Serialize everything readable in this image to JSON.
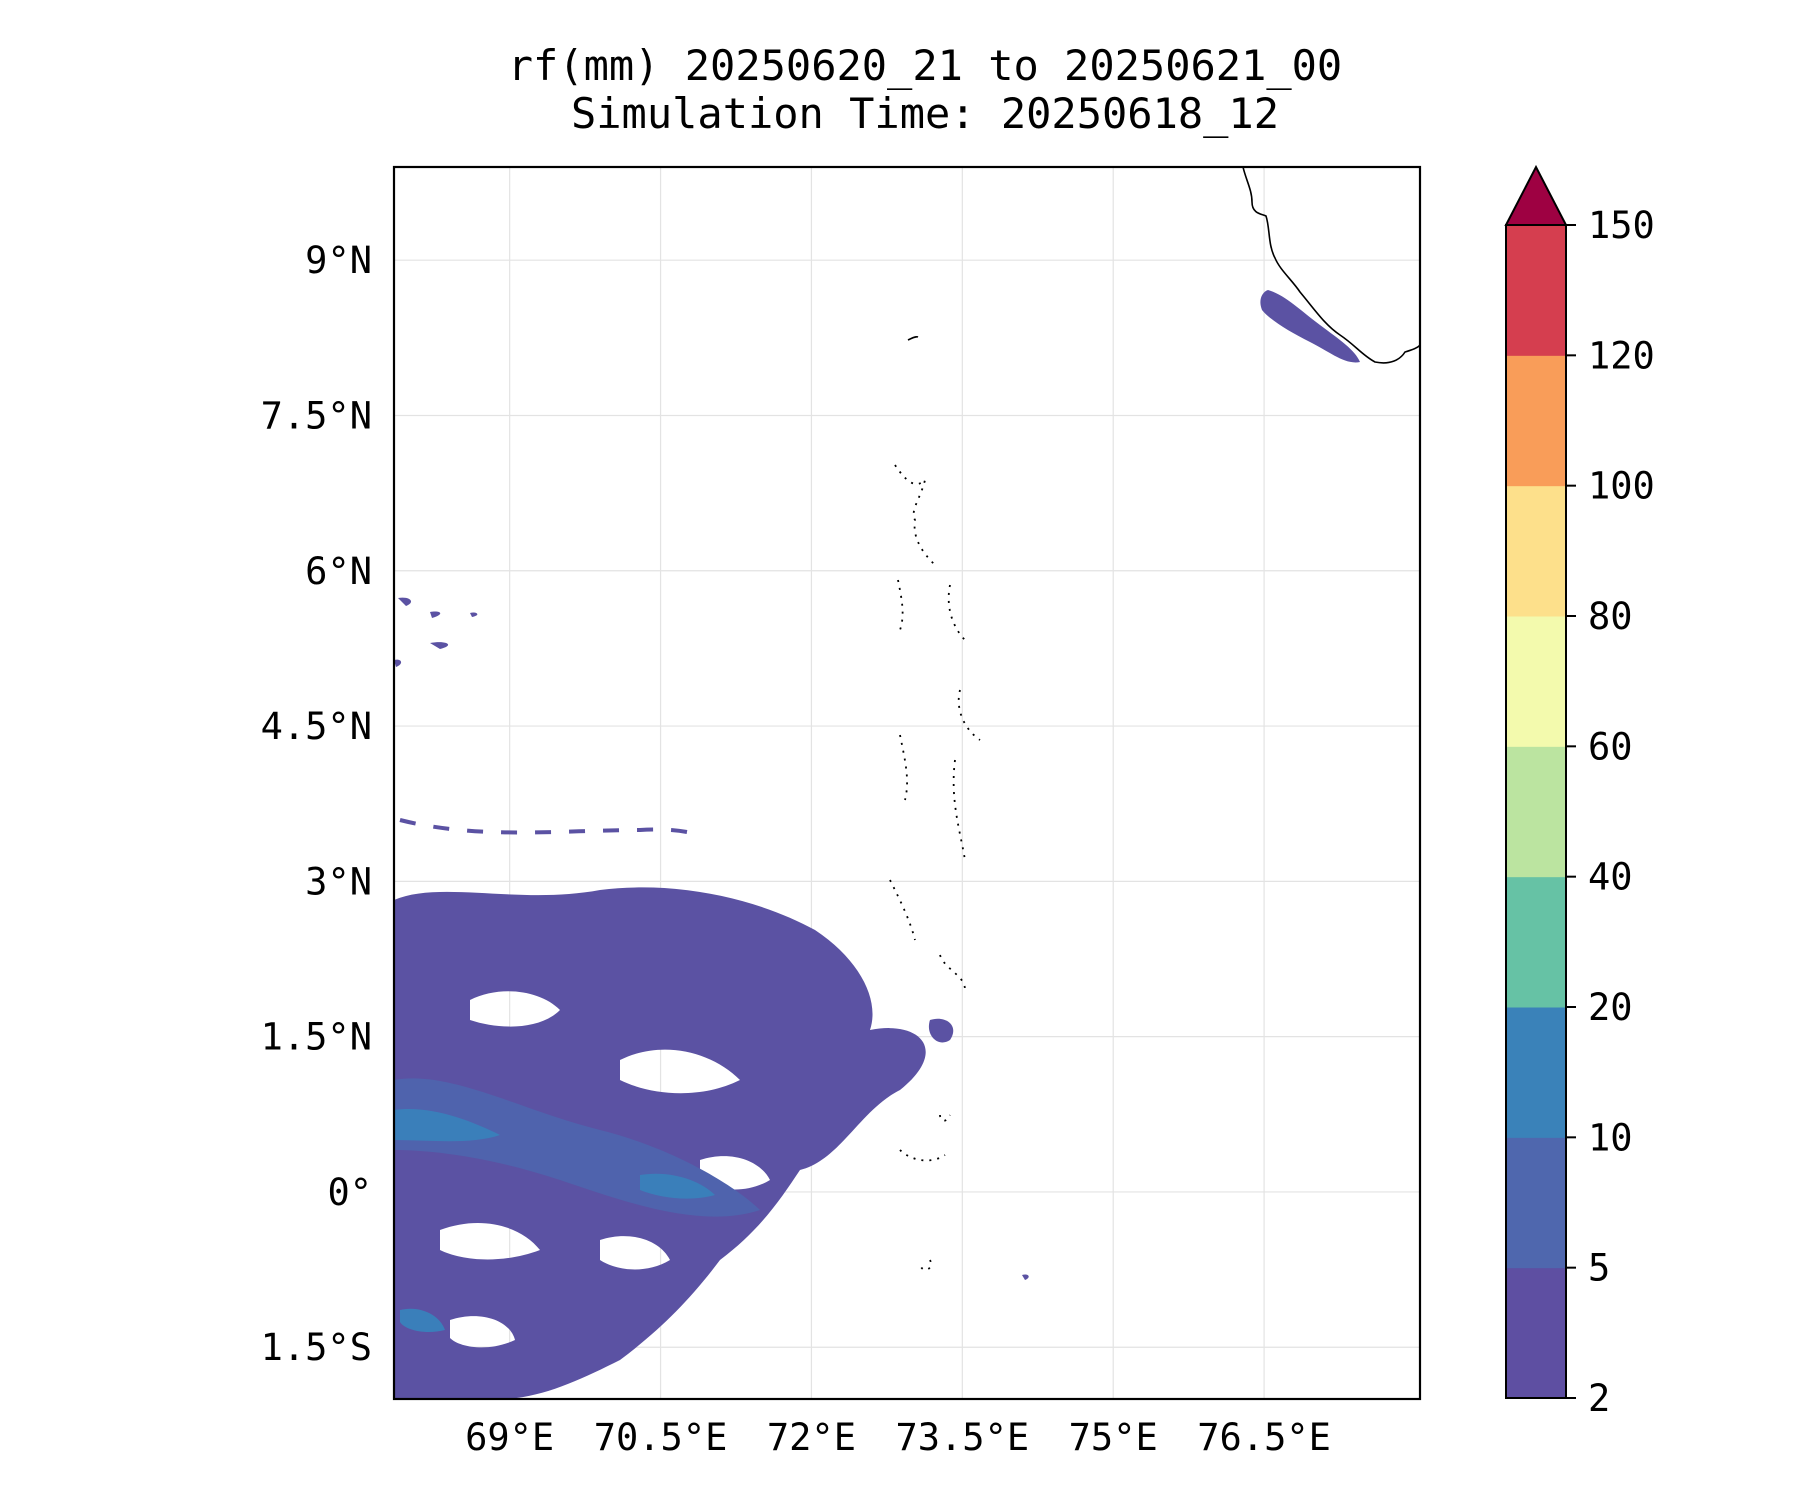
{
  "title_line_1": "rf(mm) 20250620_21 to 20250621_00",
  "title_line_2": "Simulation Time: 20250618_12",
  "map": {
    "lon_range": [
      67.85,
      78.05
    ],
    "lat_range": [
      -2.0,
      9.9
    ],
    "grid": true,
    "lon_ticks": [
      {
        "value": 69.0,
        "label": "69°E"
      },
      {
        "value": 70.5,
        "label": "70.5°E"
      },
      {
        "value": 72.0,
        "label": "72°E"
      },
      {
        "value": 73.5,
        "label": "73.5°E"
      },
      {
        "value": 75.0,
        "label": "75°E"
      },
      {
        "value": 76.5,
        "label": "76.5°E"
      }
    ],
    "lat_ticks": [
      {
        "value": 9.0,
        "label": "9°N"
      },
      {
        "value": 7.5,
        "label": "7.5°N"
      },
      {
        "value": 6.0,
        "label": "6°N"
      },
      {
        "value": 4.5,
        "label": "4.5°N"
      },
      {
        "value": 3.0,
        "label": "3°N"
      },
      {
        "value": 1.5,
        "label": "1.5°N"
      },
      {
        "value": 0.0,
        "label": "0°"
      },
      {
        "value": -1.5,
        "label": "1.5°S"
      }
    ],
    "coastline_color": "#000000",
    "rain_colors": {
      "band_2_5": "#5b52a3",
      "band_5_10": "#4f63ad",
      "band_10_20": "#3a7fba"
    }
  },
  "colorbar": {
    "levels": [
      "2",
      "5",
      "10",
      "20",
      "40",
      "60",
      "80",
      "100",
      "120",
      "150"
    ],
    "colors": [
      "#5e4fa2",
      "#4f67ae",
      "#3a82b9",
      "#66c2a5",
      "#bbe4a0",
      "#f3faad",
      "#fde08b",
      "#f99d59",
      "#d53e4f"
    ],
    "extend_color": "#9e0142",
    "extend": "max",
    "unit": "mm"
  }
}
